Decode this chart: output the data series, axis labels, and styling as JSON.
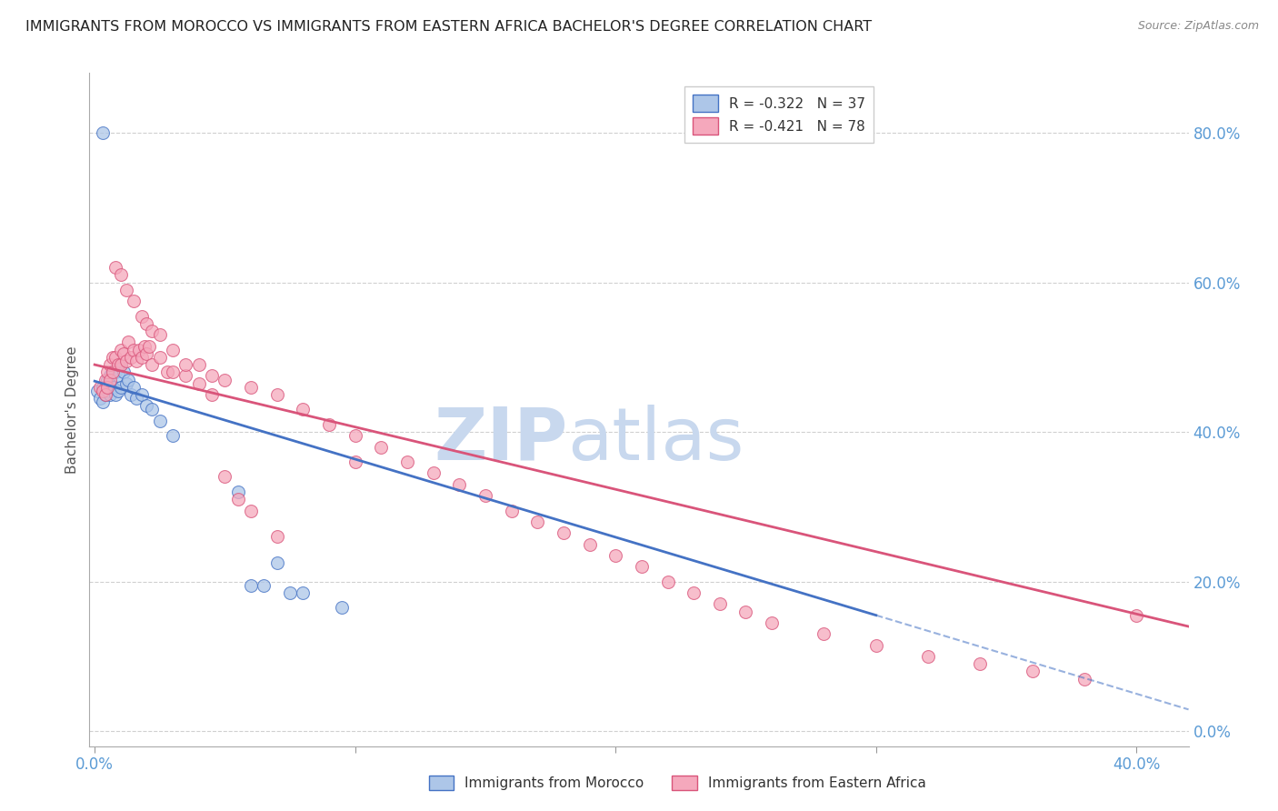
{
  "title": "IMMIGRANTS FROM MOROCCO VS IMMIGRANTS FROM EASTERN AFRICA BACHELOR'S DEGREE CORRELATION CHART",
  "source": "Source: ZipAtlas.com",
  "ylabel": "Bachelor's Degree",
  "xlim": [
    -0.002,
    0.42
  ],
  "ylim": [
    -0.02,
    0.88
  ],
  "x_ticks": [
    0.0,
    0.1,
    0.2,
    0.3,
    0.4
  ],
  "y_ticks": [
    0.0,
    0.2,
    0.4,
    0.6,
    0.8
  ],
  "morocco_R": "-0.322",
  "morocco_N": "37",
  "eastern_africa_R": "-0.421",
  "eastern_africa_N": "78",
  "morocco_color": "#adc6e8",
  "eastern_africa_color": "#f5a8bc",
  "trend_morocco_color": "#4472c4",
  "trend_eastern_africa_color": "#d9547a",
  "background_color": "#ffffff",
  "grid_color": "#d0d0d0",
  "axis_color": "#5b9bd5",
  "legend_label_morocco": "Immigrants from Morocco",
  "legend_label_eastern_africa": "Immigrants from Eastern Africa",
  "morocco_x": [
    0.001,
    0.002,
    0.003,
    0.003,
    0.004,
    0.004,
    0.005,
    0.005,
    0.006,
    0.006,
    0.007,
    0.007,
    0.008,
    0.008,
    0.009,
    0.009,
    0.01,
    0.01,
    0.011,
    0.012,
    0.013,
    0.014,
    0.015,
    0.016,
    0.018,
    0.02,
    0.022,
    0.025,
    0.03,
    0.055,
    0.06,
    0.065,
    0.07,
    0.075,
    0.08,
    0.095,
    0.003
  ],
  "morocco_y": [
    0.455,
    0.445,
    0.46,
    0.44,
    0.46,
    0.45,
    0.47,
    0.455,
    0.475,
    0.45,
    0.48,
    0.46,
    0.48,
    0.45,
    0.475,
    0.455,
    0.49,
    0.46,
    0.48,
    0.465,
    0.47,
    0.45,
    0.46,
    0.445,
    0.45,
    0.435,
    0.43,
    0.415,
    0.395,
    0.32,
    0.195,
    0.195,
    0.225,
    0.185,
    0.185,
    0.165,
    0.8
  ],
  "eastern_africa_x": [
    0.002,
    0.003,
    0.004,
    0.004,
    0.005,
    0.005,
    0.006,
    0.006,
    0.007,
    0.007,
    0.008,
    0.009,
    0.01,
    0.01,
    0.011,
    0.012,
    0.013,
    0.014,
    0.015,
    0.016,
    0.017,
    0.018,
    0.019,
    0.02,
    0.021,
    0.022,
    0.025,
    0.028,
    0.03,
    0.035,
    0.04,
    0.045,
    0.05,
    0.06,
    0.07,
    0.08,
    0.09,
    0.1,
    0.11,
    0.12,
    0.13,
    0.14,
    0.15,
    0.16,
    0.17,
    0.18,
    0.19,
    0.2,
    0.21,
    0.22,
    0.23,
    0.24,
    0.25,
    0.26,
    0.28,
    0.3,
    0.32,
    0.34,
    0.36,
    0.38,
    0.4,
    0.008,
    0.01,
    0.012,
    0.015,
    0.018,
    0.02,
    0.022,
    0.025,
    0.03,
    0.035,
    0.04,
    0.045,
    0.05,
    0.055,
    0.06,
    0.07,
    0.1
  ],
  "eastern_africa_y": [
    0.46,
    0.455,
    0.47,
    0.45,
    0.48,
    0.46,
    0.49,
    0.47,
    0.5,
    0.48,
    0.5,
    0.49,
    0.51,
    0.49,
    0.505,
    0.495,
    0.52,
    0.5,
    0.51,
    0.495,
    0.51,
    0.5,
    0.515,
    0.505,
    0.515,
    0.49,
    0.5,
    0.48,
    0.48,
    0.475,
    0.49,
    0.475,
    0.47,
    0.46,
    0.45,
    0.43,
    0.41,
    0.395,
    0.38,
    0.36,
    0.345,
    0.33,
    0.315,
    0.295,
    0.28,
    0.265,
    0.25,
    0.235,
    0.22,
    0.2,
    0.185,
    0.17,
    0.16,
    0.145,
    0.13,
    0.115,
    0.1,
    0.09,
    0.08,
    0.07,
    0.155,
    0.62,
    0.61,
    0.59,
    0.575,
    0.555,
    0.545,
    0.535,
    0.53,
    0.51,
    0.49,
    0.465,
    0.45,
    0.34,
    0.31,
    0.295,
    0.26,
    0.36
  ],
  "watermark_zip": "ZIP",
  "watermark_atlas": "atlas",
  "watermark_color": "#c8d8ee",
  "trend_morocco_x0": 0.0,
  "trend_morocco_y0": 0.468,
  "trend_morocco_x1": 0.3,
  "trend_morocco_y1": 0.155,
  "trend_morocco_dash_x0": 0.3,
  "trend_morocco_dash_y0": 0.155,
  "trend_morocco_dash_x1": 0.42,
  "trend_morocco_dash_y1": 0.029,
  "trend_eastern_africa_x0": 0.0,
  "trend_eastern_africa_y0": 0.49,
  "trend_eastern_africa_x1": 0.42,
  "trend_eastern_africa_y1": 0.14
}
